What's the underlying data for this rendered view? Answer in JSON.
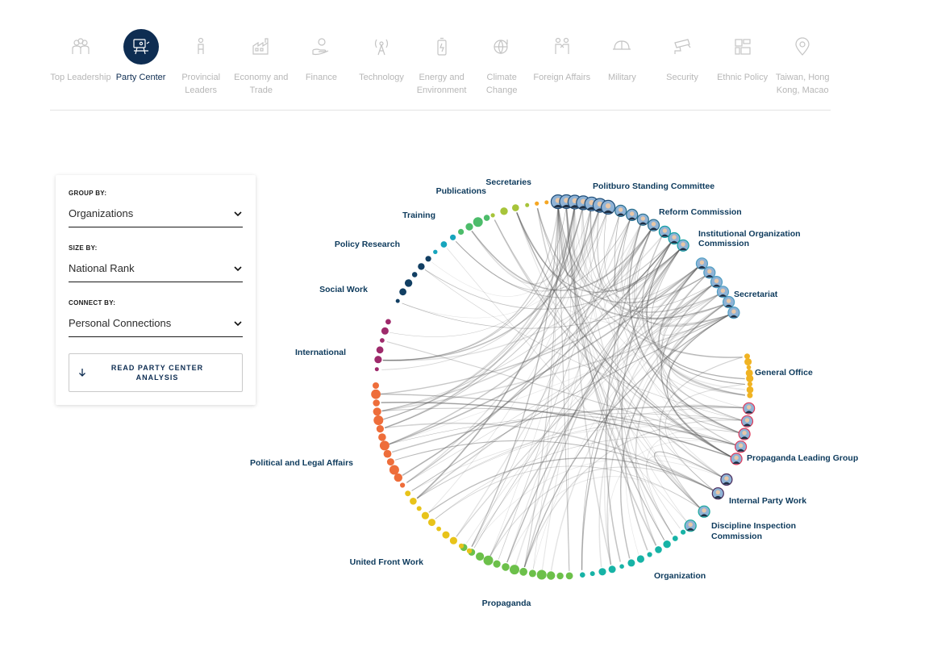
{
  "nav": {
    "items": [
      {
        "key": "top-leadership",
        "label": "Top Leadership",
        "icon": "people-group-icon",
        "active": false
      },
      {
        "key": "party-center",
        "label": "Party Center",
        "icon": "podium-speaker-icon",
        "active": true
      },
      {
        "key": "provincial-leaders",
        "label": "Provincial Leaders",
        "icon": "person-standing-icon",
        "active": false
      },
      {
        "key": "economy-trade",
        "label": "Economy and Trade",
        "icon": "factory-icon",
        "active": false
      },
      {
        "key": "finance",
        "label": "Finance",
        "icon": "hand-coin-icon",
        "active": false
      },
      {
        "key": "technology",
        "label": "Technology",
        "icon": "antenna-tower-icon",
        "active": false
      },
      {
        "key": "energy-environment",
        "label": "Energy and Environment",
        "icon": "battery-icon",
        "active": false
      },
      {
        "key": "climate-change",
        "label": "Climate Change",
        "icon": "globe-thermometer-icon",
        "active": false
      },
      {
        "key": "foreign-affairs",
        "label": "Foreign Affairs",
        "icon": "handshake-people-icon",
        "active": false
      },
      {
        "key": "military",
        "label": "Military",
        "icon": "helmet-icon",
        "active": false
      },
      {
        "key": "security",
        "label": "Security",
        "icon": "security-camera-icon",
        "active": false
      },
      {
        "key": "ethnic-policy",
        "label": "Ethnic Policy",
        "icon": "grid-pattern-icon",
        "active": false
      },
      {
        "key": "taiwan-hk-macao",
        "label": "Taiwan, Hong Kong, Macao",
        "icon": "map-pin-icon",
        "active": false
      }
    ]
  },
  "controls": {
    "group_by": {
      "label": "GROUP BY:",
      "value": "Organizations"
    },
    "size_by": {
      "label": "SIZE BY:",
      "value": "National Rank"
    },
    "connect_by": {
      "label": "CONNECT BY:",
      "value": "Personal Connections"
    },
    "read_button": {
      "line1": "READ PARTY CENTER",
      "line2": "ANALYSIS"
    }
  },
  "colors": {
    "nav_active": "#0e2d52",
    "nav_inactive": "#b7b7b7",
    "link": "#555555"
  },
  "chart_data": {
    "type": "chord-network",
    "groups": [
      {
        "name": "Politburo Standing Committee",
        "color": "#1f4e79",
        "nodes": 7,
        "photos": true
      },
      {
        "name": "Reform Commission",
        "color": "#2a6f8f",
        "nodes": 4,
        "photos": true
      },
      {
        "name": "Institutional Organization Commission",
        "color": "#14a0a6",
        "nodes": 3,
        "photos": true
      },
      {
        "name": "Secretariat",
        "color": "#4f9fc4",
        "nodes": 6,
        "photos": true
      },
      {
        "name": "General Office",
        "color": "#f0b323",
        "nodes": 8,
        "photos": false
      },
      {
        "name": "Propaganda Leading Group",
        "color": "#e13a5a",
        "nodes": 5,
        "photos": true
      },
      {
        "name": "Internal Party Work",
        "color": "#4a2a5a",
        "nodes": 2,
        "photos": true
      },
      {
        "name": "Discipline Inspection Commission",
        "color": "#17a89c",
        "nodes": 2,
        "photos": true
      },
      {
        "name": "Organization",
        "color": "#17b3a6",
        "nodes": 12,
        "photos": false
      },
      {
        "name": "Propaganda",
        "color": "#6cc04a",
        "nodes": 13,
        "photos": false
      },
      {
        "name": "United Front Work",
        "color": "#e8c31a",
        "nodes": 10,
        "photos": false
      },
      {
        "name": "Political and Legal Affairs",
        "color": "#ee6d3a",
        "nodes": 13,
        "photos": false
      },
      {
        "name": "International",
        "color": "#9e2a6b",
        "nodes": 6,
        "photos": false
      },
      {
        "name": "Social Work",
        "color": "#123f63",
        "nodes": 6,
        "photos": false
      },
      {
        "name": "Policy Research",
        "color": "#17a5bd",
        "nodes": 3,
        "photos": false
      },
      {
        "name": "Training",
        "color": "#4cbc6a",
        "nodes": 4,
        "photos": false
      },
      {
        "name": "Publications",
        "color": "#a7c43a",
        "nodes": 4,
        "photos": false
      },
      {
        "name": "Secretaries",
        "color": "#f5a623",
        "nodes": 2,
        "photos": false
      }
    ]
  }
}
